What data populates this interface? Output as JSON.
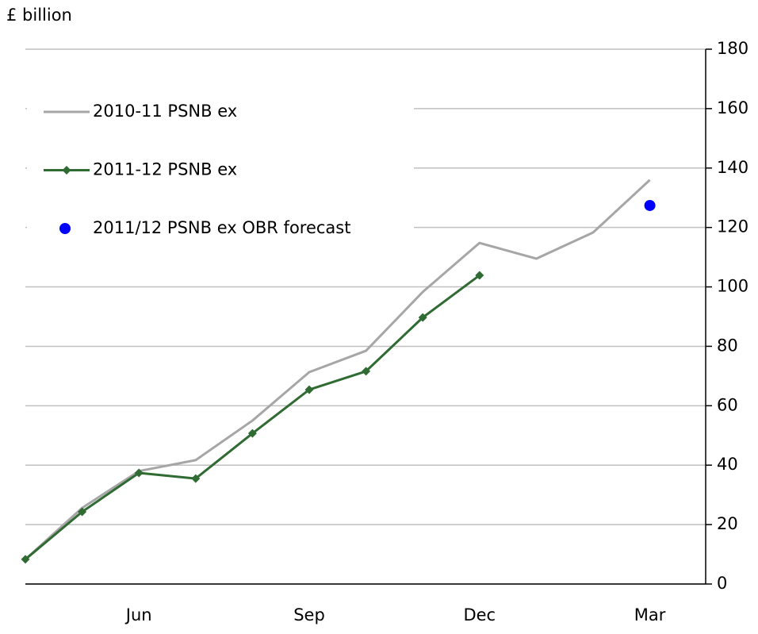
{
  "chart_data": {
    "type": "line",
    "y_label": "£ billion",
    "categories": [
      null,
      null,
      "Jun",
      null,
      null,
      "Sep",
      null,
      null,
      "Dec",
      null,
      null,
      "Mar"
    ],
    "series": [
      {
        "name": "2010-11 PSNB ex",
        "color": "#a6a6a6",
        "type": "line",
        "marker": false,
        "values": [
          8.3,
          25.6,
          38,
          41.7,
          55,
          71.3,
          78.5,
          98.3,
          114.8,
          109.5,
          118.3,
          136
        ]
      },
      {
        "name": "2011-12 PSNB ex",
        "color": "#2f6b32",
        "type": "line",
        "marker": true,
        "values": [
          8.3,
          24.3,
          37.4,
          35.5,
          50.7,
          65.4,
          71.6,
          89.7,
          103.9,
          null,
          null,
          null
        ]
      },
      {
        "name": "2011/12 PSNB ex OBR forecast",
        "color": "#0000ff",
        "type": "scatter",
        "marker": true,
        "values": [
          null,
          null,
          null,
          null,
          null,
          null,
          null,
          null,
          null,
          null,
          null,
          127.4
        ]
      }
    ],
    "ylim": [
      0,
      180
    ],
    "yticks": [
      0,
      20,
      40,
      60,
      80,
      100,
      120,
      140,
      160,
      180
    ],
    "grid": true,
    "y_axis_side": "right",
    "legend": "top-left"
  }
}
